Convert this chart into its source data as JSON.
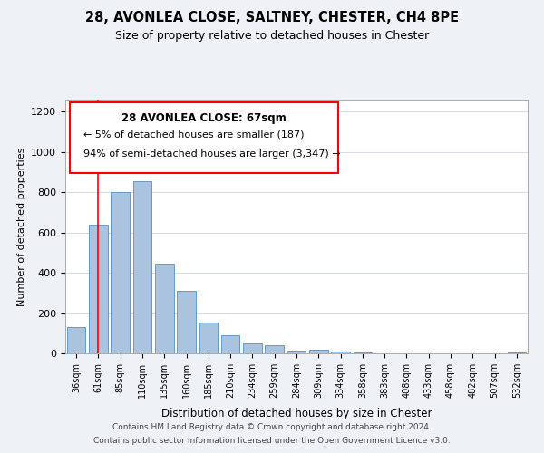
{
  "title": "28, AVONLEA CLOSE, SALTNEY, CHESTER, CH4 8PE",
  "subtitle": "Size of property relative to detached houses in Chester",
  "xlabel": "Distribution of detached houses by size in Chester",
  "ylabel": "Number of detached properties",
  "bar_labels": [
    "36sqm",
    "61sqm",
    "85sqm",
    "110sqm",
    "135sqm",
    "160sqm",
    "185sqm",
    "210sqm",
    "234sqm",
    "259sqm",
    "284sqm",
    "309sqm",
    "334sqm",
    "358sqm",
    "383sqm",
    "408sqm",
    "433sqm",
    "458sqm",
    "482sqm",
    "507sqm",
    "532sqm"
  ],
  "bar_values": [
    130,
    640,
    800,
    855,
    445,
    310,
    155,
    90,
    50,
    40,
    15,
    20,
    10,
    5,
    0,
    0,
    0,
    0,
    0,
    0,
    5
  ],
  "bar_color": "#aac4e0",
  "bar_edge_color": "#6699cc",
  "ylim": [
    0,
    1260
  ],
  "yticks": [
    0,
    200,
    400,
    600,
    800,
    1000,
    1200
  ],
  "red_line_x": 1,
  "annotation_title": "28 AVONLEA CLOSE: 67sqm",
  "annotation_line1": "← 5% of detached houses are smaller (187)",
  "annotation_line2": "94% of semi-detached houses are larger (3,347) →",
  "footer_line1": "Contains HM Land Registry data © Crown copyright and database right 2024.",
  "footer_line2": "Contains public sector information licensed under the Open Government Licence v3.0.",
  "background_color": "#eef2f7",
  "plot_background": "#ffffff",
  "grid_color": "#d0dce8"
}
